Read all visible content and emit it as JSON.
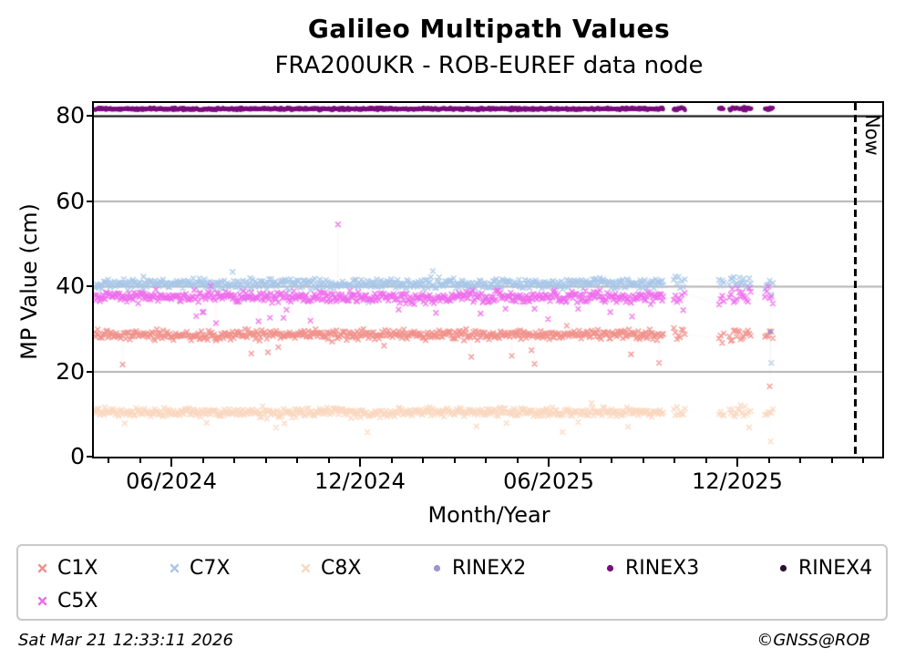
{
  "header": {
    "title": "Galileo Multipath Values",
    "subtitle": "FRA200UKR - ROB-EUREF data node"
  },
  "footer": {
    "timestamp": "Sat Mar 21 12:33:11 2026",
    "credit": "©GNSS@ROB"
  },
  "chart_data": {
    "type": "scatter",
    "title": "Galileo Multipath Values",
    "subtitle": "FRA200UKR - ROB-EUREF data node",
    "xlabel": "Month/Year",
    "ylabel": "MP Value (cm)",
    "ylim": [
      0,
      83
    ],
    "yticks": [
      0,
      20,
      40,
      60,
      80
    ],
    "grid": "horizontal-only",
    "grid_color": "#b3b3b3",
    "separator_line": {
      "y_value": 80,
      "color": "#000000"
    },
    "x_axis": {
      "unit": "months since 2024-01",
      "minor_tick_months": {
        "start": 3,
        "end": 27
      },
      "major_months": [
        5,
        11,
        17,
        23
      ],
      "major_labels": [
        "06/2024",
        "12/2024",
        "06/2025",
        "12/2025"
      ]
    },
    "now_line": {
      "month": 26.74,
      "label": "Now",
      "style": "dashed-black"
    },
    "segments": [
      {
        "from": 2.56,
        "to": 20.65,
        "step": 0.033,
        "spread": 1.0
      },
      {
        "from": 20.98,
        "to": 21.35,
        "step": 0.05,
        "spread": 1.5
      },
      {
        "from": 22.42,
        "to": 22.58,
        "step": 0.05,
        "spread": 1.5
      },
      {
        "from": 22.75,
        "to": 23.45,
        "step": 0.045,
        "spread": 1.6
      },
      {
        "from": 23.88,
        "to": 24.15,
        "step": 0.05,
        "spread": 1.6
      }
    ],
    "series": [
      {
        "name": "C1X",
        "marker": "x",
        "color": "#F1908B",
        "mean": 28.6,
        "jitter": 0.55,
        "dip_prob": 0.02,
        "dip_max": 6.5,
        "up_max": 2,
        "in_plot": true
      },
      {
        "name": "C7X",
        "marker": "x",
        "color": "#A8C7E7",
        "mean": 40.6,
        "jitter": 0.6,
        "dip_prob": 0.018,
        "dip_max": 7.5,
        "up_max": 3,
        "in_plot": true
      },
      {
        "name": "C8X",
        "marker": "x",
        "color": "#FAD7BE",
        "mean": 10.4,
        "jitter": 0.5,
        "dip_prob": 0.02,
        "dip_max": 4.5,
        "up_max": 2.5,
        "in_plot": true
      },
      {
        "name": "RINEX2",
        "marker": "dot",
        "color": "#9F94CE",
        "in_plot": false
      },
      {
        "name": "RINEX3",
        "marker": "dot",
        "color": "#7B0E7E",
        "mean": 81.6,
        "jitter": 0.12,
        "dip_prob": 0,
        "dip_max": 0,
        "up_max": 0,
        "in_plot": true
      },
      {
        "name": "RINEX4",
        "marker": "dot",
        "color": "#2B1030",
        "in_plot": false
      },
      {
        "name": "C5X",
        "marker": "x",
        "color": "#EE6CEC",
        "mean": 37.5,
        "jitter": 0.65,
        "dip_prob": 0.02,
        "dip_max": 6,
        "up_max": 3,
        "in_plot": true
      }
    ],
    "outliers": [
      {
        "series": "C5X",
        "month": 10.3,
        "value": 54.5
      },
      {
        "series": "C7X",
        "month": 24.08,
        "value": 22.0
      },
      {
        "series": "C1X",
        "month": 24.03,
        "value": 16.5
      },
      {
        "series": "C8X",
        "month": 24.06,
        "value": 3.6
      },
      {
        "series": "RINEX2",
        "month": 24.05,
        "value": 29.3
      }
    ]
  }
}
